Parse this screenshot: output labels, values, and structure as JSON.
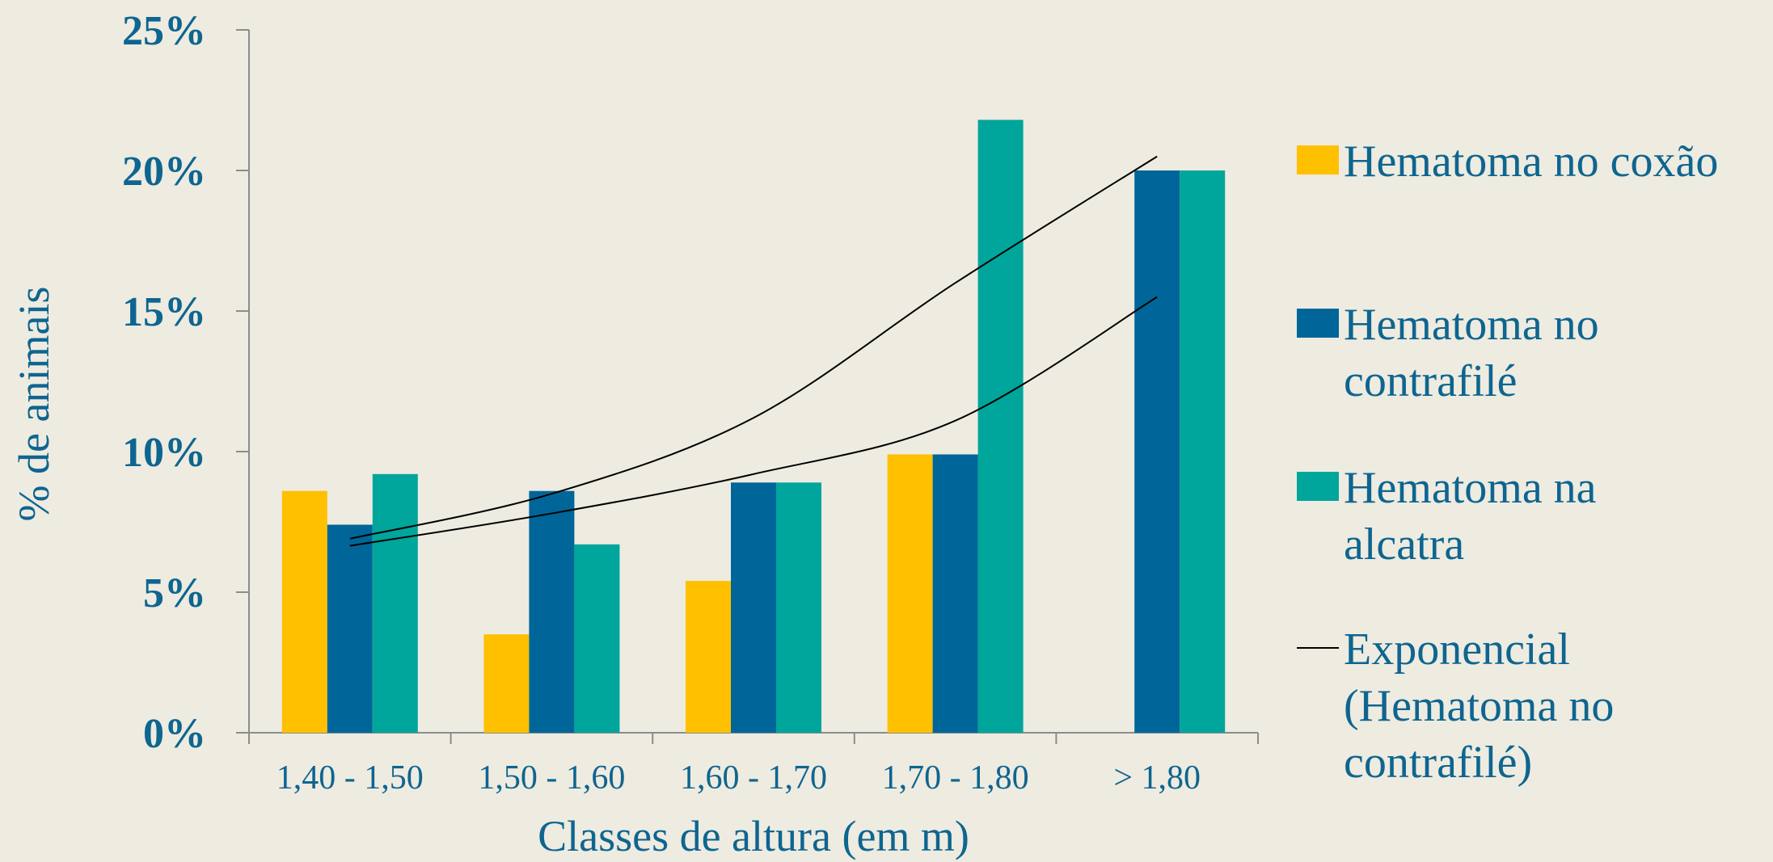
{
  "chart_data": {
    "type": "bar",
    "categories": [
      "1,40 - 1,50",
      "1,50 - 1,60",
      "1,60 - 1,70",
      "1,70 - 1,80",
      "> 1,80"
    ],
    "series": [
      {
        "name": "Hematoma no coxão",
        "color": "#ffc000",
        "values": [
          8.6,
          3.5,
          5.4,
          9.9,
          0
        ]
      },
      {
        "name": "Hematoma no contrafilé",
        "color": "#006699",
        "values": [
          7.4,
          8.6,
          8.9,
          9.9,
          20.0
        ]
      },
      {
        "name": "Hematoma na alcatra",
        "color": "#00a59c",
        "values": [
          9.2,
          6.7,
          8.9,
          21.8,
          20.0
        ]
      }
    ],
    "trendlines": [
      {
        "name": "Exponencial (Hematoma no contrafilé)",
        "type": "exponential",
        "values": [
          6.65,
          7.8,
          9.2,
          11.1,
          15.5
        ],
        "show_in_legend": true
      },
      {
        "type": "exponential",
        "values": [
          6.9,
          8.5,
          11.2,
          16.0,
          20.5
        ],
        "show_in_legend": false
      }
    ],
    "legend_lines": [
      [
        "Hematoma no coxão"
      ],
      [
        "Hematoma no",
        "contrafilé"
      ],
      [
        "Hematoma na",
        "alcatra"
      ],
      [
        "Exponencial",
        "(Hematoma no",
        "contrafilé)"
      ]
    ],
    "xlabel": "Classes de altura (em m)",
    "ylabel": "% de animais",
    "ylim": [
      0,
      25
    ],
    "yticks": [
      0,
      5,
      10,
      15,
      20,
      25
    ],
    "ytick_labels": [
      "0%",
      "5%",
      "10%",
      "15%",
      "20%",
      "25%"
    ],
    "grid": false,
    "legend_position": "right",
    "colors": {
      "text": "#0e6590",
      "axis": "#8c8c8c",
      "trendline": "#000000",
      "background": "#eeebe0"
    }
  }
}
